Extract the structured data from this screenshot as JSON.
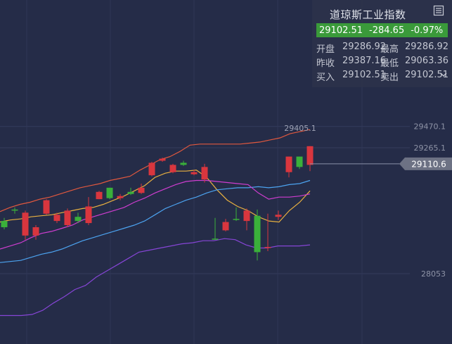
{
  "chart_data": {
    "type": "candlestick",
    "ylim": [
      28000,
      29480
    ],
    "right_axis_labels": [
      "29470.1",
      "29265.1",
      "28053"
    ],
    "right_axis_values": [
      29470.1,
      29265.1,
      28053
    ],
    "current_price_tag": "29110.6",
    "current_price": 29110.6,
    "high_annotation": "29405.1",
    "high_value": 29405.1,
    "candles": [
      {
        "o": 28500,
        "h": 28590,
        "l": 28480,
        "c": 28560
      },
      {
        "o": 28660,
        "h": 28690,
        "l": 28630,
        "c": 28670
      },
      {
        "o": 28640,
        "h": 28660,
        "l": 28380,
        "c": 28420
      },
      {
        "o": 28500,
        "h": 28520,
        "l": 28380,
        "c": 28420
      },
      {
        "o": 28760,
        "h": 28770,
        "l": 28620,
        "c": 28630
      },
      {
        "o": 28620,
        "h": 28640,
        "l": 28540,
        "c": 28560
      },
      {
        "o": 28660,
        "h": 28680,
        "l": 28500,
        "c": 28520
      },
      {
        "o": 28560,
        "h": 28640,
        "l": 28540,
        "c": 28600
      },
      {
        "o": 28700,
        "h": 28790,
        "l": 28520,
        "c": 28540
      },
      {
        "o": 28840,
        "h": 28850,
        "l": 28770,
        "c": 28770
      },
      {
        "o": 28780,
        "h": 28880,
        "l": 28770,
        "c": 28880
      },
      {
        "o": 28800,
        "h": 28820,
        "l": 28760,
        "c": 28780
      },
      {
        "o": 28820,
        "h": 28880,
        "l": 28810,
        "c": 28840
      },
      {
        "o": 28880,
        "h": 28920,
        "l": 28820,
        "c": 28830
      },
      {
        "o": 29120,
        "h": 29130,
        "l": 28990,
        "c": 29000
      },
      {
        "o": 29160,
        "h": 29170,
        "l": 29130,
        "c": 29140
      },
      {
        "o": 29100,
        "h": 29110,
        "l": 29020,
        "c": 29030
      },
      {
        "o": 29100,
        "h": 29140,
        "l": 29090,
        "c": 29120
      },
      {
        "o": 29030,
        "h": 29050,
        "l": 29000,
        "c": 29010
      },
      {
        "o": 29080,
        "h": 29110,
        "l": 28930,
        "c": 28960
      },
      {
        "o": 28390,
        "h": 28590,
        "l": 28380,
        "c": 28390
      },
      {
        "o": 28550,
        "h": 28580,
        "l": 28460,
        "c": 28470
      },
      {
        "o": 28580,
        "h": 28690,
        "l": 28560,
        "c": 28580
      },
      {
        "o": 28660,
        "h": 28680,
        "l": 28470,
        "c": 28560
      },
      {
        "o": 28260,
        "h": 28670,
        "l": 28180,
        "c": 28610
      },
      {
        "o": 28310,
        "h": 28630,
        "l": 28270,
        "c": 28300
      },
      {
        "o": 28620,
        "h": 28660,
        "l": 28570,
        "c": 28600
      },
      {
        "o": 29180,
        "h": 29180,
        "l": 28980,
        "c": 29030
      },
      {
        "o": 29080,
        "h": 29180,
        "l": 29060,
        "c": 29180
      },
      {
        "o": 29280,
        "h": 29280,
        "l": 29040,
        "c": 29100
      }
    ],
    "overlay_lines": [
      {
        "color": "#e1583e",
        "values": [
          28650,
          28690,
          28720,
          28740,
          28770,
          28790,
          28820,
          28850,
          28880,
          28900,
          28920,
          28950,
          28970,
          28990,
          29050,
          29100,
          29150,
          29180,
          29230,
          29290,
          29300,
          29300,
          29300,
          29300,
          29300,
          29310,
          29320,
          29340,
          29360,
          29400,
          29420,
          29440
        ]
      },
      {
        "color": "#e8b040",
        "values": [
          28550,
          28570,
          28580,
          28600,
          28610,
          28620,
          28640,
          28660,
          28680,
          28690,
          28720,
          28760,
          28800,
          28850,
          28900,
          28980,
          29020,
          29040,
          29040,
          29050,
          28980,
          28860,
          28760,
          28700,
          28660,
          28600,
          28560,
          28550,
          28660,
          28740,
          28850
        ]
      },
      {
        "color": "#4ca3f0",
        "values": [
          28160,
          28170,
          28180,
          28210,
          28240,
          28260,
          28290,
          28330,
          28370,
          28400,
          28430,
          28460,
          28490,
          28520,
          28560,
          28620,
          28680,
          28720,
          28760,
          28790,
          28830,
          28860,
          28870,
          28880,
          28880,
          28890,
          28880,
          28890,
          28910,
          28920,
          28950
        ]
      },
      {
        "color": "#cf3dd0",
        "values": [
          28290,
          28320,
          28350,
          28400,
          28440,
          28460,
          28490,
          28520,
          28570,
          28600,
          28630,
          28660,
          28690,
          28740,
          28780,
          28830,
          28870,
          28910,
          28940,
          28950,
          28950,
          28940,
          28930,
          28920,
          28910,
          28830,
          28770,
          28790,
          28790,
          28800,
          28820
        ]
      },
      {
        "color": "#8645d6",
        "values": [
          27650,
          27650,
          27650,
          27660,
          27700,
          27770,
          27830,
          27900,
          27940,
          28020,
          28080,
          28140,
          28200,
          28260,
          28280,
          28300,
          28320,
          28340,
          28350,
          28370,
          28370,
          28390,
          28380,
          28330,
          28300,
          28300,
          28320,
          28320,
          28320,
          28330
        ]
      }
    ]
  },
  "panel": {
    "title": "道琼斯工业指数",
    "price": "29102.51",
    "change": "-284.65",
    "change_pct": "-0.97%",
    "rows": [
      {
        "l1": "开盘",
        "v1": "29286.92",
        "l2": "最高",
        "v2": "29286.92"
      },
      {
        "l1": "昨收",
        "v1": "29387.16",
        "l2": "最低",
        "v2": "29063.36"
      },
      {
        "l1": "买入",
        "v1": "29102.51",
        "l2": "卖出",
        "v2": "29102.51"
      }
    ],
    "icons": {
      "menu": "menu-list-icon",
      "expand": "chevron-down-icon"
    }
  },
  "colors": {
    "background": "#252c48",
    "up": "#3ab03a",
    "down": "#d9363e",
    "panel_quote": "#3a9a3a",
    "price_tag": "#6d7284"
  }
}
